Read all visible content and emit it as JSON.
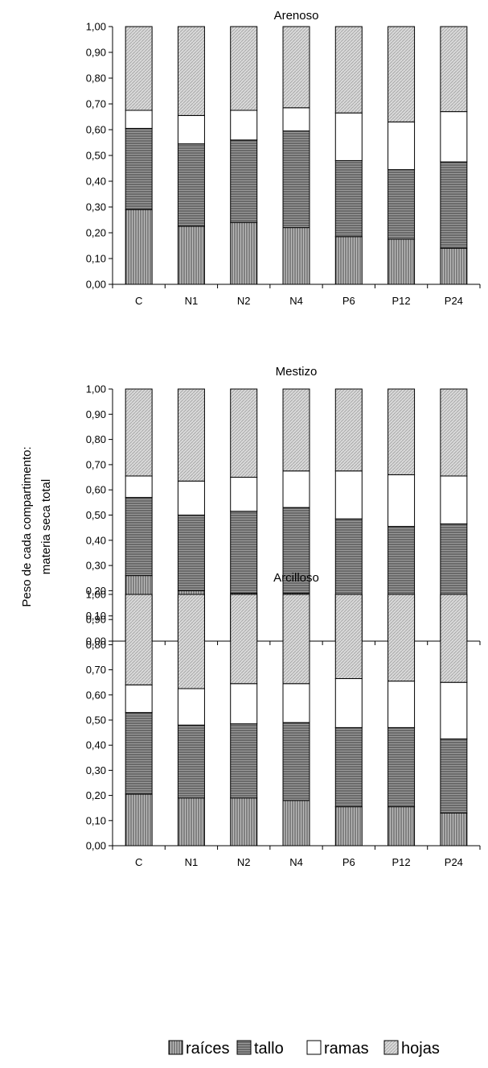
{
  "chart_data": {
    "type": "bar",
    "stacked": true,
    "ylabel_line1": "Peso de cada compartimento:",
    "ylabel_line2": "materia seca total",
    "categories": [
      "C",
      "N1",
      "N2",
      "N4",
      "P6",
      "P12",
      "P24"
    ],
    "ylim": [
      0,
      1
    ],
    "yticks": [
      "0,00",
      "0,10",
      "0,20",
      "0,30",
      "0,40",
      "0,50",
      "0,60",
      "0,70",
      "0,80",
      "0,90",
      "1,00"
    ],
    "legend_position": "bottom",
    "series_names": [
      "raíces",
      "tallo",
      "ramas",
      "hojas"
    ],
    "series_styles": {
      "raíces": {
        "fill": "#a8a8a8",
        "pattern": "vertical-lines"
      },
      "tallo": {
        "fill": "#8c8c8c",
        "pattern": "horizontal-lines"
      },
      "ramas": {
        "fill": "#ffffff",
        "pattern": "none"
      },
      "hojas": {
        "fill": "#d6d6d6",
        "pattern": "fine-dots"
      }
    },
    "panels": [
      {
        "title": "Arenoso",
        "series": [
          {
            "name": "raíces",
            "values": [
              0.29,
              0.225,
              0.24,
              0.22,
              0.185,
              0.175,
              0.14
            ]
          },
          {
            "name": "tallo",
            "values": [
              0.315,
              0.32,
              0.32,
              0.375,
              0.295,
              0.27,
              0.335
            ]
          },
          {
            "name": "ramas",
            "values": [
              0.07,
              0.11,
              0.115,
              0.09,
              0.185,
              0.185,
              0.195
            ]
          },
          {
            "name": "hojas",
            "values": [
              0.325,
              0.345,
              0.325,
              0.315,
              0.335,
              0.37,
              0.33
            ]
          }
        ]
      },
      {
        "title": "Mestizo",
        "series": [
          {
            "name": "raíces",
            "values": [
              0.26,
              0.2,
              0.19,
              0.19,
              0.155,
              0.14,
              0.14
            ]
          },
          {
            "name": "tallo",
            "values": [
              0.31,
              0.3,
              0.325,
              0.34,
              0.33,
              0.315,
              0.325
            ]
          },
          {
            "name": "ramas",
            "values": [
              0.085,
              0.135,
              0.135,
              0.145,
              0.19,
              0.205,
              0.19
            ]
          },
          {
            "name": "hojas",
            "values": [
              0.345,
              0.365,
              0.35,
              0.325,
              0.325,
              0.34,
              0.345
            ]
          }
        ]
      },
      {
        "title": "Arcilloso",
        "series": [
          {
            "name": "raíces",
            "values": [
              0.205,
              0.19,
              0.19,
              0.18,
              0.155,
              0.155,
              0.13
            ]
          },
          {
            "name": "tallo",
            "values": [
              0.325,
              0.29,
              0.295,
              0.31,
              0.315,
              0.315,
              0.295
            ]
          },
          {
            "name": "ramas",
            "values": [
              0.11,
              0.145,
              0.16,
              0.155,
              0.195,
              0.185,
              0.225
            ]
          },
          {
            "name": "hojas",
            "values": [
              0.36,
              0.375,
              0.355,
              0.355,
              0.335,
              0.345,
              0.35
            ]
          }
        ]
      }
    ]
  }
}
